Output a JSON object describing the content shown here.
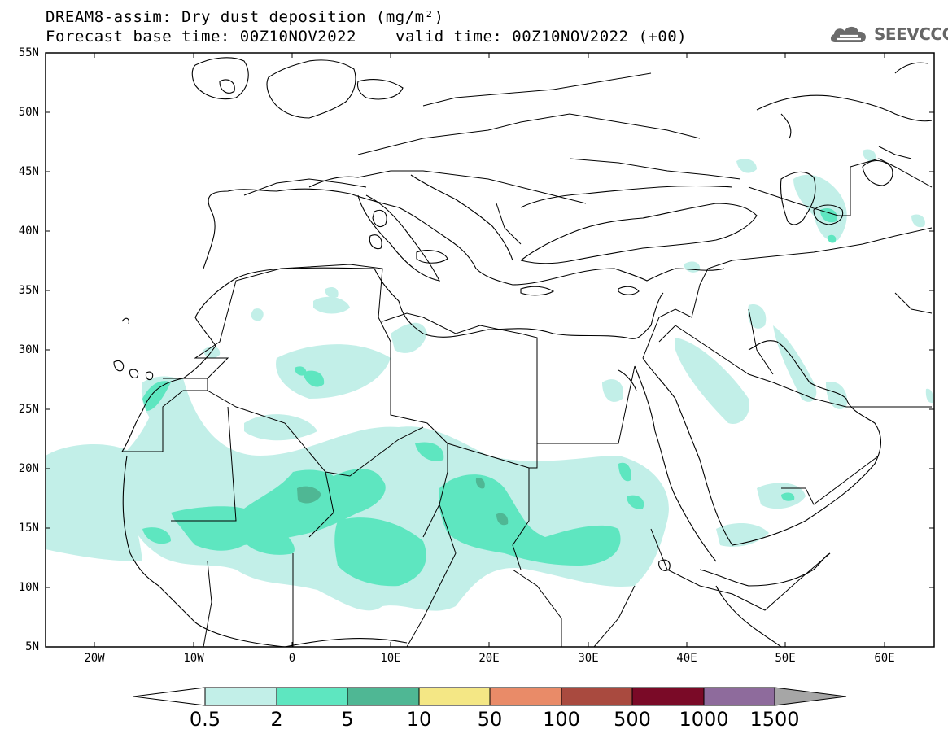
{
  "header": {
    "title_line1": "DREAM8-assim: Dry dust deposition (mg/m²)",
    "title_line2": "Forecast base time: 00Z10NOV2022",
    "valid_time": "valid time: 00Z10NOV2022 (+00)",
    "logo_text": "SEEVCCC",
    "logo_icon": "cloud-logo-icon"
  },
  "map": {
    "lat_labels": [
      "55N",
      "50N",
      "45N",
      "40N",
      "35N",
      "30N",
      "25N",
      "20N",
      "15N",
      "10N",
      "5N"
    ],
    "lon_labels": [
      "20W",
      "10W",
      "0",
      "10E",
      "20E",
      "30E",
      "40E",
      "50E",
      "60E"
    ]
  },
  "colorbar": {
    "labels": [
      "0.5",
      "2",
      "5",
      "10",
      "50",
      "100",
      "500",
      "1000",
      "1500"
    ],
    "colors": [
      "#c2efe8",
      "#5ee6c0",
      "#4fb794",
      "#f4e785",
      "#e98b68",
      "#a94a3f",
      "#7a0a27",
      "#8e6b9c"
    ],
    "under_color": "#ffffff",
    "over_color": "#a6a6a6"
  },
  "legend_colors": {
    "level_0_5": "#c2efe8",
    "level_2": "#5ee6c0",
    "level_5": "#4fb794"
  }
}
